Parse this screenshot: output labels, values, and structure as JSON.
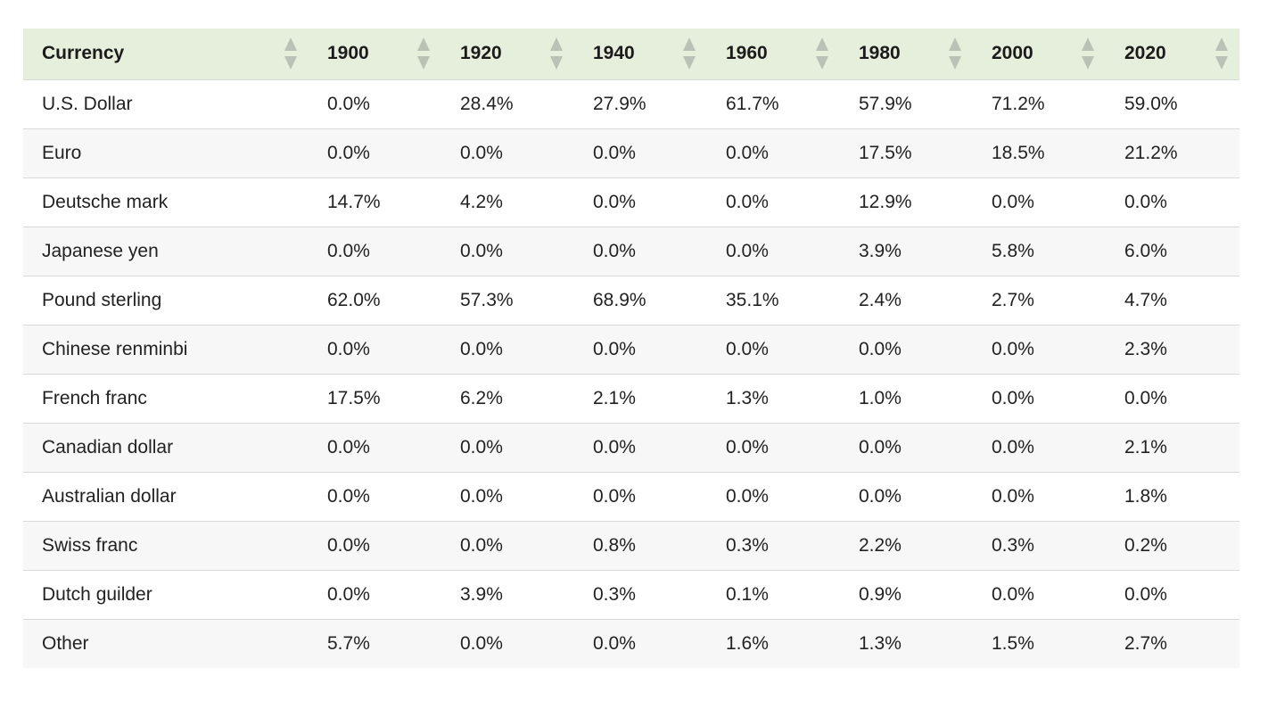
{
  "table": {
    "headers": [
      "Currency",
      "1900",
      "1920",
      "1940",
      "1960",
      "1980",
      "2000",
      "2020"
    ],
    "rows": [
      [
        "U.S. Dollar",
        "0.0%",
        "28.4%",
        "27.9%",
        "61.7%",
        "57.9%",
        "71.2%",
        "59.0%"
      ],
      [
        "Euro",
        "0.0%",
        "0.0%",
        "0.0%",
        "0.0%",
        "17.5%",
        "18.5%",
        "21.2%"
      ],
      [
        "Deutsche mark",
        "14.7%",
        "4.2%",
        "0.0%",
        "0.0%",
        "12.9%",
        "0.0%",
        "0.0%"
      ],
      [
        "Japanese yen",
        "0.0%",
        "0.0%",
        "0.0%",
        "0.0%",
        "3.9%",
        "5.8%",
        "6.0%"
      ],
      [
        "Pound sterling",
        "62.0%",
        "57.3%",
        "68.9%",
        "35.1%",
        "2.4%",
        "2.7%",
        "4.7%"
      ],
      [
        "Chinese renminbi",
        "0.0%",
        "0.0%",
        "0.0%",
        "0.0%",
        "0.0%",
        "0.0%",
        "2.3%"
      ],
      [
        "French franc",
        "17.5%",
        "6.2%",
        "2.1%",
        "1.3%",
        "1.0%",
        "0.0%",
        "0.0%"
      ],
      [
        "Canadian dollar",
        "0.0%",
        "0.0%",
        "0.0%",
        "0.0%",
        "0.0%",
        "0.0%",
        "2.1%"
      ],
      [
        "Australian dollar",
        "0.0%",
        "0.0%",
        "0.0%",
        "0.0%",
        "0.0%",
        "0.0%",
        "1.8%"
      ],
      [
        "Swiss franc",
        "0.0%",
        "0.0%",
        "0.8%",
        "0.3%",
        "2.2%",
        "0.3%",
        "0.2%"
      ],
      [
        "Dutch guilder",
        "0.0%",
        "3.9%",
        "0.3%",
        "0.1%",
        "0.9%",
        "0.0%",
        "0.0%"
      ],
      [
        "Other",
        "5.7%",
        "0.0%",
        "0.0%",
        "1.6%",
        "1.3%",
        "1.5%",
        "2.7%"
      ]
    ]
  },
  "colors": {
    "header_bg": "#e6eedc",
    "row_alt_bg": "#f7f7f7",
    "sort_arrow": "#b9c2b4",
    "row_border": "#d9d9d9"
  },
  "icons": {
    "sort": "sort-up-down-icon"
  }
}
